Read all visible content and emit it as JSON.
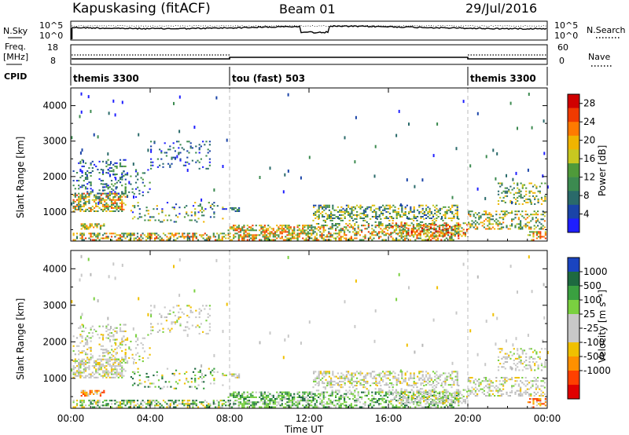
{
  "header": {
    "station": "Kapuskasing (fitACF)",
    "beam": "Beam 01",
    "date": "29/Jul/2016"
  },
  "side_labels": {
    "nsky": "N.Sky",
    "freq_line1": "Freq.",
    "freq_line2": "[MHz]",
    "cpid": "CPID",
    "nsearch": "N.Search",
    "nave": "Nave"
  },
  "colors": {
    "power_scale": [
      "#1e1eff",
      "#1a44a8",
      "#2a6a6a",
      "#3c8a50",
      "#4f9a3a",
      "#c8c820",
      "#f0b400",
      "#ff7a00",
      "#f03a00",
      "#d00000"
    ],
    "velocity_scale": [
      "#1a44c0",
      "#1e6a40",
      "#3aa040",
      "#7ad040",
      "#c8c8c8",
      "#c8c8c8",
      "#f0c000",
      "#ff9000",
      "#ff4000",
      "#e00000"
    ]
  },
  "chart_data": [
    {
      "type": "line",
      "panel": "noise",
      "left_ticks": [
        "10^5",
        "10^0"
      ],
      "right_ticks": [
        "10^5",
        "10^0"
      ],
      "series": [
        {
          "name": "N.Sky"
        },
        {
          "name": "N.Search"
        }
      ]
    },
    {
      "type": "line",
      "panel": "freq",
      "left_ticks": [
        "18",
        "8"
      ],
      "right_ticks": [
        "60",
        "0"
      ],
      "series": [
        {
          "name": "Freq."
        },
        {
          "name": "Nave"
        }
      ]
    },
    {
      "type": "table",
      "panel": "cpid",
      "segments": [
        {
          "label": "themis 3300",
          "start_hour": 0,
          "end_hour": 8
        },
        {
          "label": "tou (fast) 503",
          "start_hour": 8,
          "end_hour": 20
        },
        {
          "label": "themis 3300",
          "start_hour": 20,
          "end_hour": 24
        }
      ]
    },
    {
      "type": "heatmap",
      "panel": "power",
      "ylabel": "Slant Range [km]",
      "y_ticks": [
        1000,
        2000,
        3000,
        4000
      ],
      "ylim": [
        180,
        4500
      ],
      "xlim": [
        0,
        24
      ],
      "colorbar_label": "Power [dB]",
      "colorbar_ticks": [
        4,
        8,
        12,
        16,
        20,
        24,
        28
      ],
      "colorbar_range": [
        0,
        30
      ]
    },
    {
      "type": "heatmap",
      "panel": "velocity",
      "ylabel": "Slant Range [km]",
      "y_ticks": [
        1000,
        2000,
        3000,
        4000
      ],
      "ylim": [
        180,
        4500
      ],
      "xlim": [
        0,
        24
      ],
      "colorbar_label": "Velocity [m s⁻¹]",
      "colorbar_ticks": [
        "1000",
        "500",
        "100",
        "25",
        "-25",
        "-100",
        "-500",
        "-1000"
      ]
    }
  ],
  "x_axis": {
    "label": "Time UT",
    "ticks": [
      "00:00",
      "04:00",
      "08:00",
      "12:00",
      "16:00",
      "20:00",
      "00:00"
    ],
    "tick_hours": [
      0,
      4,
      8,
      12,
      16,
      20,
      24
    ]
  }
}
